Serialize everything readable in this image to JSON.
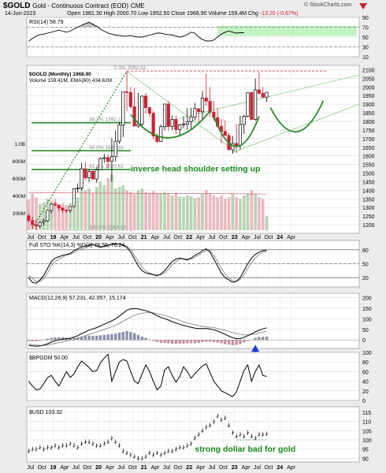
{
  "header": {
    "symbol": "$GOLD",
    "name": "Gold - Continuous Contract (EOD)",
    "exchange": "CME",
    "date": "14-Jun-2023",
    "open_label": "Open",
    "open": "1981.30",
    "high_label": "High",
    "high": "2000.70",
    "low_label": "Low",
    "low": "1952.50",
    "close_label": "Close",
    "close": "1968.90",
    "volume_label": "Volume",
    "volume": "159.4M",
    "chg_label": "Chg",
    "chg": "-13.20 (-0.67%)",
    "credit": "© StockCharts.com"
  },
  "colors": {
    "up": "#000000",
    "down": "#cc2233",
    "ma": "#2a8a2a",
    "hist": "#8a8fa8",
    "fill": "#999999",
    "band": "#b8f0b8",
    "arrow": "#1a3ee0",
    "annot": "#1a8a1a"
  },
  "x_axis": [
    "Jul",
    "Oct",
    "19",
    "Apr",
    "Jul",
    "Oct",
    "20",
    "Apr",
    "Jul",
    "Oct",
    "21",
    "Apr",
    "Jul",
    "Oct",
    "22",
    "Apr",
    "Jul",
    "Oct",
    "23",
    "Apr",
    "Jul",
    "Oct",
    "24",
    "Apr"
  ],
  "chart_data": [
    {
      "type": "line",
      "title": "RSI(14) 58.79",
      "ylim": [
        10,
        90
      ],
      "yticks": [
        10,
        30,
        50,
        70,
        90
      ],
      "series": [
        {
          "name": "RSI(14)",
          "values": [
            42,
            47,
            52,
            55,
            56,
            58,
            60,
            62,
            64,
            62,
            60,
            62,
            66,
            70,
            74,
            77,
            80,
            76,
            72,
            66,
            62,
            58,
            56,
            54,
            53,
            52,
            52,
            53,
            51,
            50,
            50,
            52,
            54,
            56,
            58,
            58,
            56,
            55,
            54,
            52,
            50,
            52,
            55,
            60,
            58,
            50,
            45,
            42,
            42,
            44,
            50,
            56,
            60,
            62,
            60,
            58,
            59,
            58.8
          ]
        }
      ]
    },
    {
      "type": "candlestick",
      "title": "$GOLD (Monthly) 1968.90",
      "legend": [
        "Volume 159.41M, EMA(60) 434.62M"
      ],
      "ylim": [
        1150,
        2125
      ],
      "yticks": [
        1200,
        1250,
        1300,
        1350,
        1400,
        1450,
        1500,
        1550,
        1600,
        1650,
        1700,
        1750,
        1800,
        1850,
        1900,
        1950,
        2000,
        2050,
        2100
      ],
      "fib_levels": [
        {
          "label": "0.0% 2092.52",
          "value": 2092.52
        },
        {
          "label": "38.2% 1792.22",
          "value": 1792.22
        },
        {
          "label": "50.0% 1629.81",
          "value": 1629.81
        },
        {
          "label": "61.8% 1520.61",
          "value": 1520.61
        },
        {
          "label": "100.0% 1167.10",
          "value": 1167.1
        }
      ],
      "volume_axis": [
        "1.0B",
        "800M",
        "600M",
        "400M",
        "200M"
      ],
      "volume_max": 1000,
      "annotation": "inverse head shoulder setting up",
      "series": [
        {
          "name": "open",
          "values": [
            1252,
            1224,
            1200,
            1192,
            1214,
            1223,
            1283,
            1320,
            1313,
            1297,
            1284,
            1283,
            1306,
            1410,
            1413,
            1525,
            1472,
            1510,
            1465,
            1519,
            1584,
            1590,
            1568,
            1596,
            1685,
            1780,
            1972,
            1968,
            1886,
            1773,
            1783,
            1947,
            1880,
            1847,
            1715,
            1683,
            1769,
            1901,
            1770,
            1812,
            1753,
            1781,
            1785,
            1799,
            1826,
            1874,
            1856,
            1936,
            1917,
            1854,
            1822,
            1772,
            1742,
            1718,
            1635,
            1672,
            1661,
            1782,
            1829,
            1967,
            1811,
            1983,
            1963,
            1941
          ]
        },
        {
          "name": "high",
          "values": [
            1268,
            1245,
            1227,
            1218,
            1235,
            1245,
            1326,
            1349,
            1316,
            1302,
            1292,
            1299,
            1362,
            1440,
            1560,
            1565,
            1523,
            1516,
            1534,
            1592,
            1613,
            1611,
            1703,
            1747,
            1796,
            1803,
            2092,
            2000,
            1993,
            1966,
            1906,
            1965,
            1886,
            1862,
            1730,
            1781,
            1850,
            1919,
            1834,
            1834,
            1787,
            1830,
            1877,
            1879,
            1907,
            1874,
            1976,
            2078,
            1998,
            1919,
            1879,
            1814,
            1806,
            1735,
            1716,
            1786,
            1833,
            1837,
            1959,
            1975,
            2048,
            2085,
            2000,
            1965
          ]
        },
        {
          "name": "low",
          "values": [
            1212,
            1180,
            1168,
            1182,
            1196,
            1217,
            1265,
            1308,
            1281,
            1268,
            1268,
            1269,
            1300,
            1388,
            1400,
            1459,
            1447,
            1464,
            1445,
            1517,
            1560,
            1526,
            1450,
            1567,
            1670,
            1710,
            1860,
            1875,
            1849,
            1762,
            1764,
            1845,
            1824,
            1695,
            1676,
            1683,
            1748,
            1746,
            1750,
            1725,
            1721,
            1760,
            1753,
            1758,
            1807,
            1788,
            1812,
            1890,
            1826,
            1802,
            1765,
            1673,
            1720,
            1656,
            1612,
            1616,
            1636,
            1727,
            1823,
            1810,
            1804,
            1957,
            1932,
            1912
          ]
        },
        {
          "name": "close",
          "values": [
            1224,
            1200,
            1192,
            1214,
            1223,
            1283,
            1320,
            1313,
            1297,
            1284,
            1283,
            1306,
            1410,
            1413,
            1525,
            1472,
            1510,
            1465,
            1519,
            1584,
            1590,
            1568,
            1596,
            1685,
            1780,
            1972,
            1968,
            1886,
            1773,
            1783,
            1947,
            1880,
            1847,
            1715,
            1683,
            1769,
            1901,
            1770,
            1812,
            1753,
            1781,
            1785,
            1799,
            1826,
            1874,
            1856,
            1936,
            1917,
            1854,
            1822,
            1772,
            1742,
            1718,
            1635,
            1672,
            1661,
            1782,
            1829,
            1967,
            1811,
            1983,
            1963,
            1941,
            1969
          ]
        },
        {
          "name": "volume",
          "values": [
            350,
            420,
            380,
            300,
            320,
            360,
            340,
            330,
            300,
            310,
            290,
            310,
            420,
            380,
            520,
            460,
            480,
            430,
            500,
            560,
            520,
            600,
            640,
            480,
            500,
            520,
            460,
            440,
            420,
            460,
            480,
            440,
            430,
            450,
            420,
            430,
            440,
            420,
            400,
            430,
            390,
            380,
            400,
            390,
            370,
            380,
            420,
            460,
            420,
            400,
            380,
            400,
            360,
            380,
            420,
            380,
            360,
            400,
            420,
            460,
            420,
            380,
            360,
            160
          ]
        }
      ]
    },
    {
      "type": "line",
      "title": "Full STO %K(14,3) %D(3) 78.55, 76.24",
      "ylim": [
        0,
        100
      ],
      "yticks": [
        20,
        50,
        80
      ],
      "series": [
        {
          "name": "%K",
          "values": [
            20,
            10,
            8,
            15,
            25,
            40,
            55,
            62,
            65,
            68,
            70,
            72,
            78,
            82,
            86,
            88,
            90,
            92,
            88,
            85,
            88,
            90,
            92,
            93,
            92,
            90,
            85,
            75,
            60,
            45,
            35,
            30,
            28,
            26,
            24,
            28,
            35,
            45,
            55,
            60,
            62,
            60,
            58,
            62,
            68,
            72,
            78,
            82,
            75,
            60,
            45,
            30,
            20,
            15,
            10,
            12,
            20,
            35,
            50,
            62,
            70,
            75,
            78,
            78.55
          ]
        },
        {
          "name": "%D",
          "values": [
            25,
            18,
            12,
            12,
            18,
            30,
            45,
            55,
            60,
            64,
            68,
            70,
            74,
            78,
            82,
            85,
            88,
            90,
            90,
            87,
            86,
            88,
            90,
            92,
            92,
            90,
            88,
            80,
            68,
            55,
            42,
            34,
            30,
            28,
            26,
            26,
            30,
            38,
            48,
            55,
            60,
            61,
            60,
            60,
            64,
            68,
            74,
            78,
            78,
            68,
            55,
            40,
            28,
            20,
            14,
            12,
            16,
            26,
            40,
            52,
            62,
            70,
            75,
            76.24
          ]
        }
      ]
    },
    {
      "type": "line",
      "title": "MACD(12,26,9) 57.231, 42.057, 15.174",
      "ylim": [
        -40,
        220
      ],
      "yticks": [
        0,
        50,
        100,
        150,
        200
      ],
      "series": [
        {
          "name": "MACD",
          "values": [
            -25,
            -28,
            -30,
            -28,
            -24,
            -18,
            -10,
            -4,
            0,
            4,
            6,
            8,
            14,
            20,
            30,
            38,
            46,
            52,
            58,
            66,
            74,
            82,
            90,
            100,
            112,
            126,
            140,
            146,
            148,
            146,
            142,
            138,
            132,
            124,
            114,
            106,
            100,
            94,
            86,
            80,
            74,
            68,
            64,
            60,
            56,
            54,
            54,
            54,
            52,
            48,
            42,
            34,
            26,
            18,
            10,
            6,
            6,
            12,
            20,
            28,
            38,
            46,
            52,
            57.231
          ]
        },
        {
          "name": "Signal",
          "values": [
            -20,
            -22,
            -24,
            -26,
            -26,
            -24,
            -20,
            -16,
            -12,
            -8,
            -4,
            -1,
            3,
            8,
            14,
            20,
            26,
            32,
            38,
            44,
            50,
            56,
            62,
            70,
            78,
            88,
            98,
            108,
            116,
            122,
            126,
            128,
            130,
            128,
            124,
            120,
            114,
            110,
            104,
            98,
            92,
            86,
            80,
            76,
            72,
            68,
            64,
            62,
            60,
            58,
            54,
            50,
            45,
            40,
            35,
            30,
            26,
            24,
            24,
            26,
            28,
            32,
            37,
            42.057
          ]
        },
        {
          "name": "Histogram",
          "values": [
            -5,
            -6,
            -6,
            -2,
            2,
            6,
            10,
            12,
            12,
            12,
            10,
            9,
            11,
            12,
            16,
            18,
            20,
            20,
            20,
            22,
            24,
            26,
            28,
            30,
            34,
            38,
            42,
            38,
            32,
            24,
            16,
            10,
            2,
            -4,
            -10,
            -14,
            -14,
            -16,
            -18,
            -18,
            -18,
            -18,
            -16,
            -16,
            -16,
            -14,
            -10,
            -8,
            -8,
            -10,
            -12,
            -16,
            -19,
            -22,
            -25,
            -24,
            -20,
            -12,
            -4,
            2,
            10,
            14,
            15,
            15.174
          ]
        }
      ]
    },
    {
      "type": "line",
      "title": "$BPGDM 50.00",
      "ylim": [
        0,
        100
      ],
      "yticks": [
        0,
        20,
        40,
        60,
        80,
        100
      ],
      "series": [
        {
          "name": "$BPGDM",
          "values": [
            40,
            30,
            22,
            24,
            35,
            48,
            52,
            40,
            30,
            45,
            60,
            48,
            55,
            70,
            82,
            76,
            68,
            60,
            62,
            78,
            88,
            96,
            40,
            60,
            80,
            85,
            82,
            60,
            40,
            35,
            55,
            74,
            60,
            40,
            22,
            30,
            64,
            70,
            52,
            38,
            50,
            70,
            60,
            46,
            56,
            64,
            72,
            76,
            58,
            40,
            30,
            20,
            16,
            12,
            8,
            18,
            40,
            62,
            74,
            40,
            60,
            74,
            52,
            50
          ]
        }
      ]
    },
    {
      "type": "candlestick",
      "title": "$USD 103.32",
      "ylim": [
        88,
        118
      ],
      "yticks": [
        90,
        95,
        100,
        105,
        110,
        115
      ],
      "annotation": "strong dollar bad for gold",
      "series": [
        {
          "name": "close",
          "values": [
            94,
            95,
            95,
            96,
            95,
            96,
            96,
            97,
            96,
            97,
            97,
            98,
            97,
            96,
            98,
            99,
            99,
            98,
            97,
            97,
            98,
            99,
            101,
            99,
            97,
            94,
            93,
            92,
            91,
            90,
            90,
            91,
            93,
            92,
            93,
            92,
            93,
            94,
            94,
            95,
            96,
            96,
            97,
            98,
            101,
            103,
            105,
            107,
            108,
            110,
            113,
            111,
            112,
            108,
            104,
            102,
            103,
            102,
            104,
            102,
            101,
            103,
            103,
            103.32
          ]
        }
      ]
    }
  ]
}
